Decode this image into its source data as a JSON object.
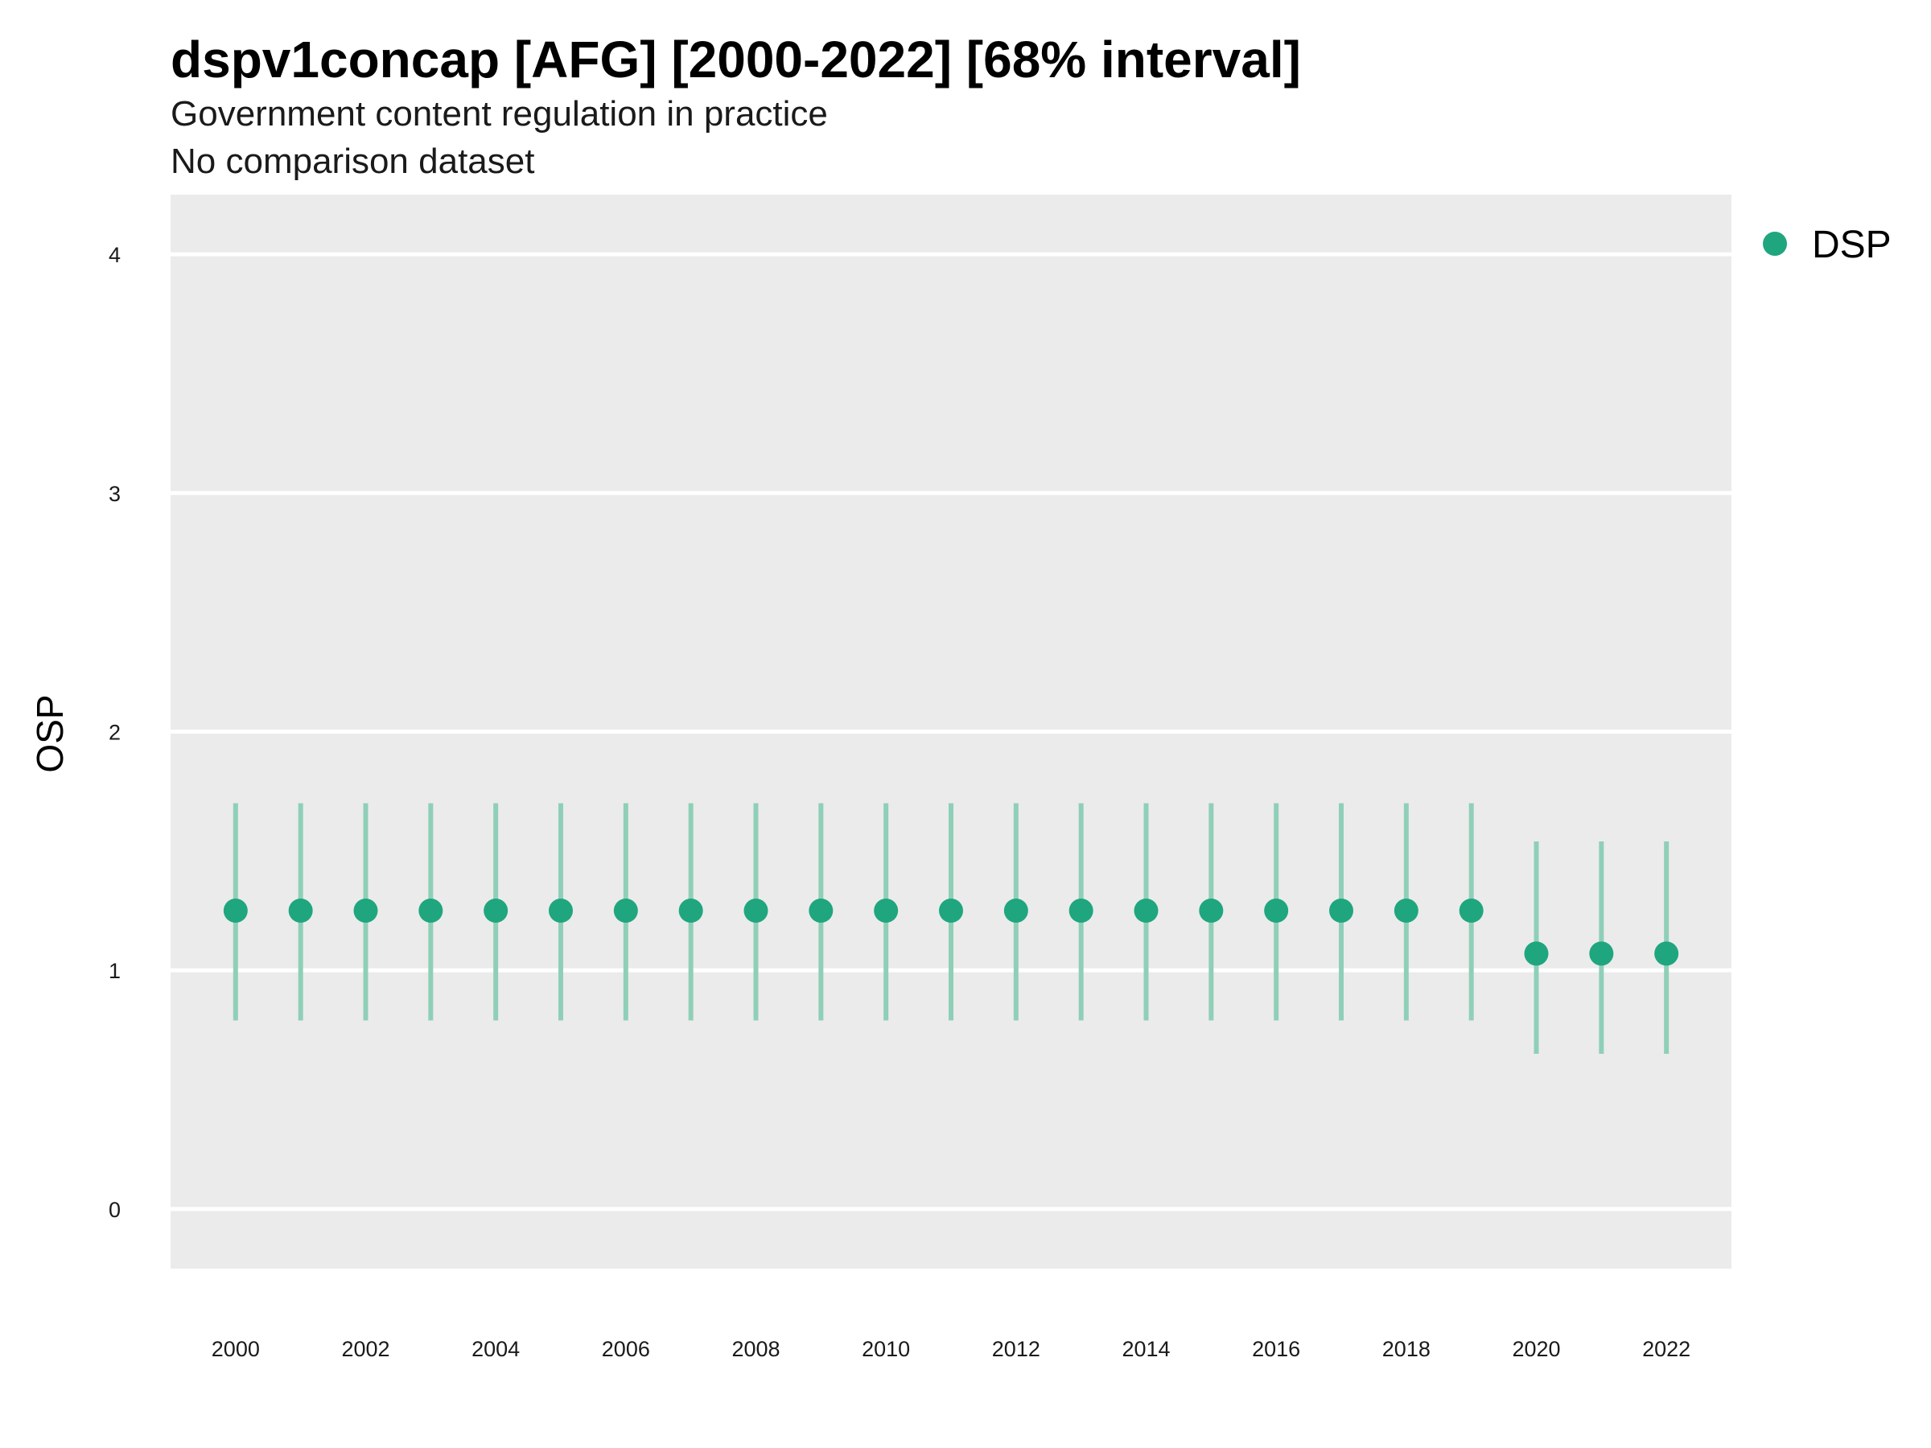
{
  "chart_data": {
    "type": "scatter",
    "title": "dspv1concap [AFG] [2000-2022] [68% interval]",
    "subtitle": "Government content regulation in practice",
    "caption": "No comparison dataset",
    "ylabel": "OSP",
    "xlabel": "",
    "ylim": [
      -0.25,
      4.25
    ],
    "y_ticks": [
      0,
      1,
      2,
      3,
      4
    ],
    "x_ticks": [
      2000,
      2002,
      2004,
      2006,
      2008,
      2010,
      2012,
      2014,
      2016,
      2018,
      2020,
      2022
    ],
    "grid": true,
    "legend_position": "right",
    "series": [
      {
        "name": "DSP",
        "color": "#1fa67e",
        "x": [
          2000,
          2001,
          2002,
          2003,
          2004,
          2005,
          2006,
          2007,
          2008,
          2009,
          2010,
          2011,
          2012,
          2013,
          2014,
          2015,
          2016,
          2017,
          2018,
          2019,
          2020,
          2021,
          2022
        ],
        "y": [
          1.25,
          1.25,
          1.25,
          1.25,
          1.25,
          1.25,
          1.25,
          1.25,
          1.25,
          1.25,
          1.25,
          1.25,
          1.25,
          1.25,
          1.25,
          1.25,
          1.25,
          1.25,
          1.25,
          1.25,
          1.07,
          1.07,
          1.07
        ],
        "lower": [
          0.79,
          0.79,
          0.79,
          0.79,
          0.79,
          0.79,
          0.79,
          0.79,
          0.79,
          0.79,
          0.79,
          0.79,
          0.79,
          0.79,
          0.79,
          0.79,
          0.79,
          0.79,
          0.79,
          0.79,
          0.65,
          0.65,
          0.65
        ],
        "upper": [
          1.7,
          1.7,
          1.7,
          1.7,
          1.7,
          1.7,
          1.7,
          1.7,
          1.7,
          1.7,
          1.7,
          1.7,
          1.7,
          1.7,
          1.7,
          1.7,
          1.7,
          1.7,
          1.7,
          1.7,
          1.54,
          1.54,
          1.54
        ]
      }
    ]
  },
  "colors": {
    "panel_background": "#ebebeb",
    "gridline": "#ffffff",
    "point": "#1fa67e",
    "interval": "#8fcfb8"
  }
}
